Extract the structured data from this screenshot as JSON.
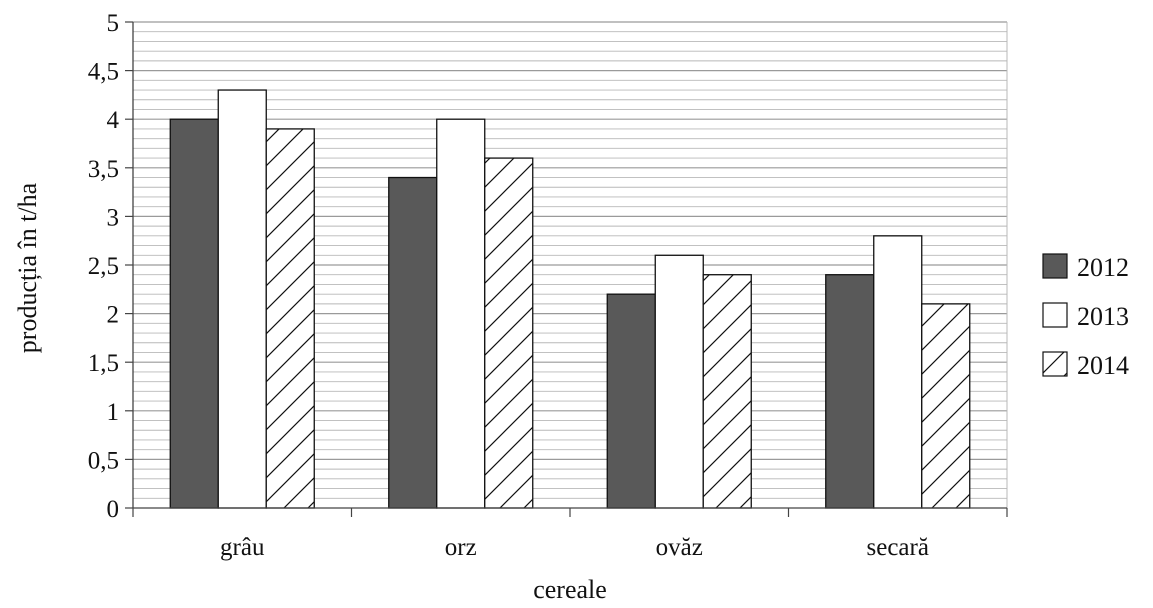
{
  "chart_data": {
    "type": "bar",
    "categories": [
      "grâu",
      "orz",
      "ovăz",
      "secară"
    ],
    "series": [
      {
        "name": "2012",
        "values": [
          4.0,
          3.4,
          2.2,
          2.4
        ],
        "fill": "solid",
        "color": "#595959"
      },
      {
        "name": "2013",
        "values": [
          4.3,
          4.0,
          2.6,
          2.8
        ],
        "fill": "white",
        "color": "#ffffff"
      },
      {
        "name": "2014",
        "values": [
          3.9,
          3.6,
          2.4,
          2.1
        ],
        "fill": "hatched",
        "color": "#ffffff"
      }
    ],
    "title": "",
    "xlabel": "cereale",
    "ylabel": "producția în t/ha",
    "ylim": [
      0,
      5
    ],
    "yticks": [
      0,
      0.5,
      1,
      1.5,
      2,
      2.5,
      3,
      3.5,
      4,
      4.5,
      5
    ],
    "ytick_labels": [
      "0",
      "0,5",
      "1",
      "1,5",
      "2",
      "2,5",
      "3",
      "3,5",
      "4",
      "4,5",
      "5"
    ],
    "minor_gridlines_step": 0.1,
    "grid": true,
    "legend_position": "right"
  }
}
